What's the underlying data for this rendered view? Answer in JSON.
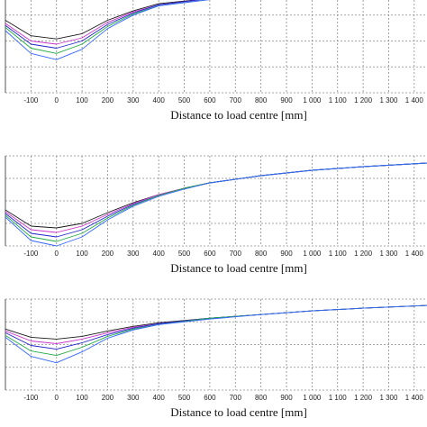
{
  "chart_data": [
    {
      "type": "line",
      "xlabel": "Distance to load centre [mm]",
      "xticks": [
        "-100",
        "0",
        "100",
        "200",
        "300",
        "400",
        "500",
        "600",
        "700",
        "800",
        "900",
        "1 000",
        "1 100",
        "1 200",
        "1 300",
        "1 400"
      ],
      "xlim": [
        -200,
        1450
      ],
      "ylim": [
        -1,
        0
      ],
      "grid": true,
      "series": [
        {
          "color": "#1a1a1a",
          "x": [
            -200,
            -100,
            0,
            100,
            200,
            300,
            400,
            600,
            800,
            1000,
            1200,
            1450
          ],
          "y": [
            -0.3,
            -0.45,
            -0.48,
            -0.43,
            -0.3,
            -0.21,
            -0.14,
            -0.09,
            -0.05,
            -0.03,
            -0.015,
            -0.005
          ]
        },
        {
          "color": "#cc33cc",
          "x": [
            -200,
            -100,
            0,
            100,
            200,
            300,
            400,
            600,
            800,
            1000,
            1200,
            1450
          ],
          "y": [
            -0.33,
            -0.5,
            -0.53,
            -0.47,
            -0.32,
            -0.22,
            -0.15,
            -0.09,
            -0.05,
            -0.03,
            -0.015,
            -0.005
          ]
        },
        {
          "color": "#2222cc",
          "x": [
            -200,
            -100,
            0,
            100,
            200,
            300,
            400,
            600,
            800,
            1000,
            1200,
            1450
          ],
          "y": [
            -0.35,
            -0.53,
            -0.57,
            -0.5,
            -0.34,
            -0.23,
            -0.15,
            -0.09,
            -0.05,
            -0.03,
            -0.015,
            -0.005
          ]
        },
        {
          "color": "#22aa44",
          "x": [
            -200,
            -100,
            0,
            100,
            200,
            300,
            400,
            600,
            800,
            1000,
            1200,
            1450
          ],
          "y": [
            -0.37,
            -0.57,
            -0.62,
            -0.53,
            -0.36,
            -0.24,
            -0.16,
            -0.1,
            -0.05,
            -0.03,
            -0.015,
            -0.005
          ]
        },
        {
          "color": "#3366ff",
          "x": [
            -200,
            -100,
            0,
            100,
            200,
            300,
            400,
            600,
            800,
            1000,
            1200,
            1450
          ],
          "y": [
            -0.4,
            -0.62,
            -0.68,
            -0.58,
            -0.38,
            -0.25,
            -0.16,
            -0.1,
            -0.06,
            -0.03,
            -0.015,
            -0.005
          ]
        }
      ]
    },
    {
      "type": "line",
      "xlabel": "Distance to load centre [mm]",
      "xticks": [
        "-100",
        "0",
        "100",
        "200",
        "300",
        "400",
        "500",
        "600",
        "700",
        "800",
        "900",
        "1 000",
        "1 100",
        "1 200",
        "1 300",
        "1 400"
      ],
      "xlim": [
        -200,
        1450
      ],
      "ylim": [
        -1,
        0
      ],
      "grid": true,
      "series": [
        {
          "color": "#1a1a1a",
          "x": [
            -200,
            -100,
            0,
            100,
            200,
            300,
            400,
            500,
            600,
            800,
            1000,
            1200,
            1450
          ],
          "y": [
            -0.6,
            -0.78,
            -0.8,
            -0.75,
            -0.63,
            -0.52,
            -0.43,
            -0.36,
            -0.3,
            -0.22,
            -0.16,
            -0.12,
            -0.08
          ]
        },
        {
          "color": "#cc33cc",
          "x": [
            -200,
            -100,
            0,
            100,
            200,
            300,
            400,
            500,
            600,
            800,
            1000,
            1200,
            1450
          ],
          "y": [
            -0.62,
            -0.82,
            -0.85,
            -0.78,
            -0.65,
            -0.53,
            -0.43,
            -0.36,
            -0.3,
            -0.22,
            -0.16,
            -0.12,
            -0.08
          ]
        },
        {
          "color": "#2222cc",
          "x": [
            -200,
            -100,
            0,
            100,
            200,
            300,
            400,
            500,
            600,
            800,
            1000,
            1200,
            1450
          ],
          "y": [
            -0.64,
            -0.86,
            -0.9,
            -0.82,
            -0.67,
            -0.54,
            -0.44,
            -0.36,
            -0.3,
            -0.22,
            -0.16,
            -0.12,
            -0.08
          ]
        },
        {
          "color": "#22aa44",
          "x": [
            -200,
            -100,
            0,
            100,
            200,
            300,
            400,
            500,
            600,
            800,
            1000,
            1200,
            1450
          ],
          "y": [
            -0.66,
            -0.9,
            -0.95,
            -0.86,
            -0.69,
            -0.55,
            -0.44,
            -0.36,
            -0.3,
            -0.22,
            -0.16,
            -0.12,
            -0.08
          ]
        },
        {
          "color": "#3366ff",
          "x": [
            -200,
            -100,
            0,
            100,
            200,
            300,
            400,
            500,
            600,
            800,
            1000,
            1200,
            1450
          ],
          "y": [
            -0.68,
            -0.94,
            -1.0,
            -0.9,
            -0.71,
            -0.56,
            -0.45,
            -0.37,
            -0.3,
            -0.22,
            -0.16,
            -0.12,
            -0.08
          ]
        }
      ]
    },
    {
      "type": "line",
      "xlabel": "Distance to load centre [mm]",
      "xticks": [
        "-100",
        "0",
        "100",
        "200",
        "300",
        "400",
        "500",
        "600",
        "700",
        "800",
        "900",
        "1 000",
        "1 100",
        "1 200",
        "1 300",
        "1 400"
      ],
      "xlim": [
        -200,
        1450
      ],
      "ylim": [
        -1,
        0
      ],
      "grid": true,
      "series": [
        {
          "color": "#1a1a1a",
          "x": [
            -200,
            -100,
            0,
            100,
            200,
            300,
            400,
            600,
            800,
            1000,
            1200,
            1450
          ],
          "y": [
            -0.33,
            -0.42,
            -0.44,
            -0.41,
            -0.35,
            -0.3,
            -0.26,
            -0.21,
            -0.17,
            -0.13,
            -0.1,
            -0.07
          ]
        },
        {
          "color": "#cc33cc",
          "x": [
            -200,
            -100,
            0,
            100,
            200,
            300,
            400,
            600,
            800,
            1000,
            1200,
            1450
          ],
          "y": [
            -0.35,
            -0.46,
            -0.49,
            -0.44,
            -0.37,
            -0.31,
            -0.27,
            -0.21,
            -0.17,
            -0.13,
            -0.1,
            -0.07
          ]
        },
        {
          "color": "#2222cc",
          "x": [
            -200,
            -100,
            0,
            100,
            200,
            300,
            400,
            600,
            800,
            1000,
            1200,
            1450
          ],
          "y": [
            -0.37,
            -0.51,
            -0.55,
            -0.48,
            -0.39,
            -0.32,
            -0.27,
            -0.21,
            -0.17,
            -0.13,
            -0.1,
            -0.07
          ]
        },
        {
          "color": "#22aa44",
          "x": [
            -200,
            -100,
            0,
            100,
            200,
            300,
            400,
            600,
            800,
            1000,
            1200,
            1450
          ],
          "y": [
            -0.4,
            -0.57,
            -0.62,
            -0.53,
            -0.41,
            -0.33,
            -0.28,
            -0.21,
            -0.17,
            -0.13,
            -0.1,
            -0.07
          ]
        },
        {
          "color": "#3366ff",
          "x": [
            -200,
            -100,
            0,
            100,
            200,
            300,
            400,
            600,
            800,
            1000,
            1200,
            1450
          ],
          "y": [
            -0.42,
            -0.63,
            -0.7,
            -0.58,
            -0.43,
            -0.34,
            -0.28,
            -0.22,
            -0.17,
            -0.13,
            -0.1,
            -0.07
          ]
        }
      ]
    }
  ]
}
